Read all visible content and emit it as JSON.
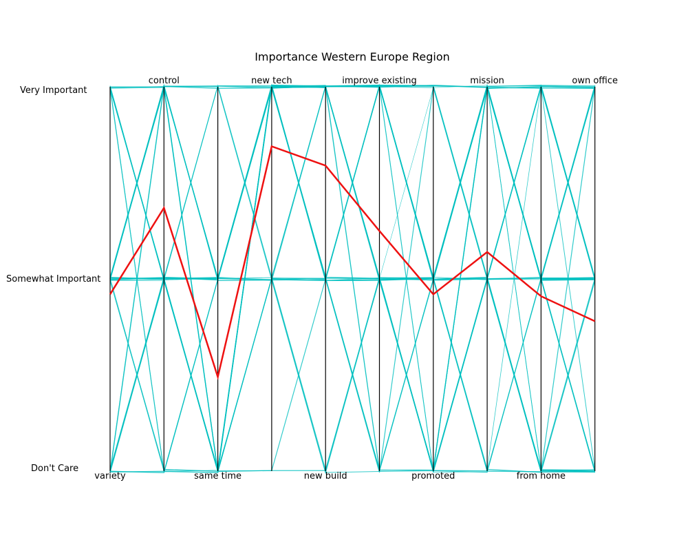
{
  "chart_data": {
    "type": "parallel-coordinates",
    "title": "Importance Western Europe Region",
    "axes": [
      "variety",
      "control",
      "same time",
      "new tech",
      "new build",
      "improve existing",
      "promoted",
      "mission",
      "from home",
      "own office"
    ],
    "y_levels": [
      "Don't Care",
      "Somewhat Important",
      "Very Important"
    ],
    "y_values": [
      0,
      1,
      2
    ],
    "ylim": [
      0,
      2
    ],
    "highlight_series": {
      "name": "",
      "color": "#ee1111",
      "values": [
        0.92,
        1.37,
        0.49,
        1.69,
        1.59,
        1.25,
        0.92,
        1.14,
        0.91,
        0.78
      ]
    },
    "background_series_color": "#00bfbf",
    "background_series": [
      [
        2,
        2,
        1,
        2,
        2,
        2,
        1,
        2,
        2,
        1
      ],
      [
        1,
        2,
        1,
        2,
        2,
        1,
        1,
        2,
        1,
        1
      ],
      [
        1,
        1,
        0,
        1,
        1,
        1,
        0,
        1,
        1,
        0
      ],
      [
        2,
        1,
        0,
        2,
        2,
        2,
        1,
        2,
        1,
        2
      ],
      [
        1,
        2,
        0,
        1,
        1,
        2,
        2,
        1,
        2,
        1
      ],
      [
        0,
        1,
        1,
        2,
        2,
        1,
        0,
        0,
        1,
        0
      ],
      [
        1,
        2,
        2,
        2,
        1,
        2,
        1,
        2,
        2,
        2
      ],
      [
        2,
        0,
        1,
        2,
        1,
        1,
        0,
        1,
        0,
        0
      ],
      [
        0,
        1,
        0,
        2,
        2,
        1,
        1,
        2,
        2,
        1
      ],
      [
        1,
        1,
        1,
        2,
        2,
        2,
        2,
        2,
        1,
        1
      ],
      [
        2,
        1,
        2,
        1,
        0,
        1,
        0,
        1,
        0,
        0
      ],
      [
        1,
        0,
        0,
        2,
        1,
        0,
        1,
        0,
        1,
        1
      ],
      [
        0,
        2,
        1,
        1,
        2,
        2,
        1,
        1,
        2,
        2
      ],
      [
        2,
        2,
        1,
        2,
        2,
        1,
        0,
        2,
        0,
        0
      ],
      [
        1,
        1,
        0,
        0,
        1,
        0,
        2,
        1,
        1,
        2
      ],
      [
        1,
        2,
        0,
        2,
        1,
        1,
        1,
        0,
        0,
        0
      ],
      [
        0,
        0,
        1,
        2,
        2,
        2,
        1,
        2,
        1,
        1
      ],
      [
        2,
        1,
        1,
        1,
        1,
        2,
        2,
        2,
        2,
        1
      ],
      [
        1,
        1,
        2,
        2,
        2,
        1,
        1,
        1,
        0,
        0
      ],
      [
        0,
        1,
        0,
        1,
        0,
        0,
        0,
        0,
        1,
        2
      ],
      [
        1,
        2,
        1,
        2,
        2,
        2,
        2,
        1,
        1,
        1
      ],
      [
        2,
        2,
        0,
        2,
        1,
        1,
        0,
        2,
        2,
        1
      ],
      [
        1,
        0,
        0,
        1,
        1,
        0,
        1,
        1,
        0,
        0
      ],
      [
        0,
        2,
        2,
        2,
        2,
        2,
        1,
        2,
        1,
        2
      ],
      [
        1,
        1,
        1,
        2,
        1,
        1,
        0,
        0,
        1,
        1
      ],
      [
        2,
        1,
        0,
        0,
        0,
        1,
        1,
        1,
        2,
        2
      ],
      [
        1,
        2,
        1,
        2,
        2,
        0,
        0,
        2,
        1,
        0
      ],
      [
        0,
        1,
        1,
        1,
        2,
        2,
        2,
        1,
        0,
        1
      ],
      [
        1,
        1,
        0,
        2,
        2,
        1,
        1,
        2,
        2,
        2
      ],
      [
        2,
        0,
        1,
        2,
        1,
        2,
        0,
        1,
        1,
        0
      ],
      [
        1,
        2,
        2,
        1,
        1,
        1,
        1,
        0,
        0,
        1
      ],
      [
        0,
        0,
        0,
        2,
        2,
        2,
        2,
        2,
        1,
        1
      ],
      [
        1,
        1,
        1,
        2,
        1,
        0,
        0,
        1,
        2,
        2
      ],
      [
        2,
        2,
        0,
        1,
        2,
        1,
        1,
        2,
        0,
        0
      ],
      [
        1,
        1,
        2,
        2,
        2,
        2,
        0,
        1,
        1,
        1
      ],
      [
        0,
        1,
        1,
        1,
        1,
        1,
        1,
        0,
        2,
        1
      ],
      [
        1,
        0,
        0,
        2,
        2,
        1,
        2,
        2,
        1,
        0
      ],
      [
        2,
        1,
        1,
        2,
        1,
        2,
        1,
        1,
        0,
        2
      ],
      [
        1,
        2,
        1,
        1,
        0,
        1,
        0,
        2,
        1,
        1
      ],
      [
        0,
        1,
        0,
        2,
        2,
        0,
        1,
        1,
        2,
        0
      ]
    ]
  }
}
